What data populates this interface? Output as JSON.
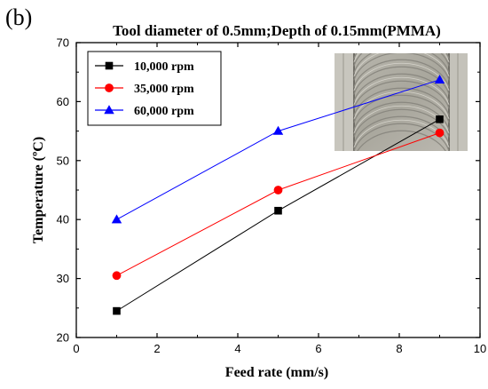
{
  "panel_label": "(b)",
  "chart_data": {
    "type": "line",
    "title": "Tool diameter of 0.5mm;Depth of 0.15mm(PMMA)",
    "xlabel": "Feed rate (mm/s)",
    "ylabel": "Temperature (ºC)",
    "xlim": [
      0,
      10
    ],
    "ylim": [
      20,
      70
    ],
    "xticks": [
      0,
      2,
      4,
      6,
      8,
      10
    ],
    "yticks": [
      20,
      30,
      40,
      50,
      60,
      70
    ],
    "grid": false,
    "legend_position": "top-left",
    "inset_image": "micrograph",
    "series": [
      {
        "name": "10,000 rpm",
        "color": "#000000",
        "marker": "square",
        "x": [
          1,
          5,
          9
        ],
        "y": [
          24.5,
          41.5,
          57.0
        ]
      },
      {
        "name": "35,000 rpm",
        "color": "#ff0000",
        "marker": "circle",
        "x": [
          1,
          5,
          9
        ],
        "y": [
          30.5,
          45.0,
          54.7
        ]
      },
      {
        "name": "60,000 rpm",
        "color": "#0000ff",
        "marker": "triangle",
        "x": [
          1,
          5,
          9
        ],
        "y": [
          40.0,
          55.0,
          63.7
        ]
      }
    ]
  }
}
